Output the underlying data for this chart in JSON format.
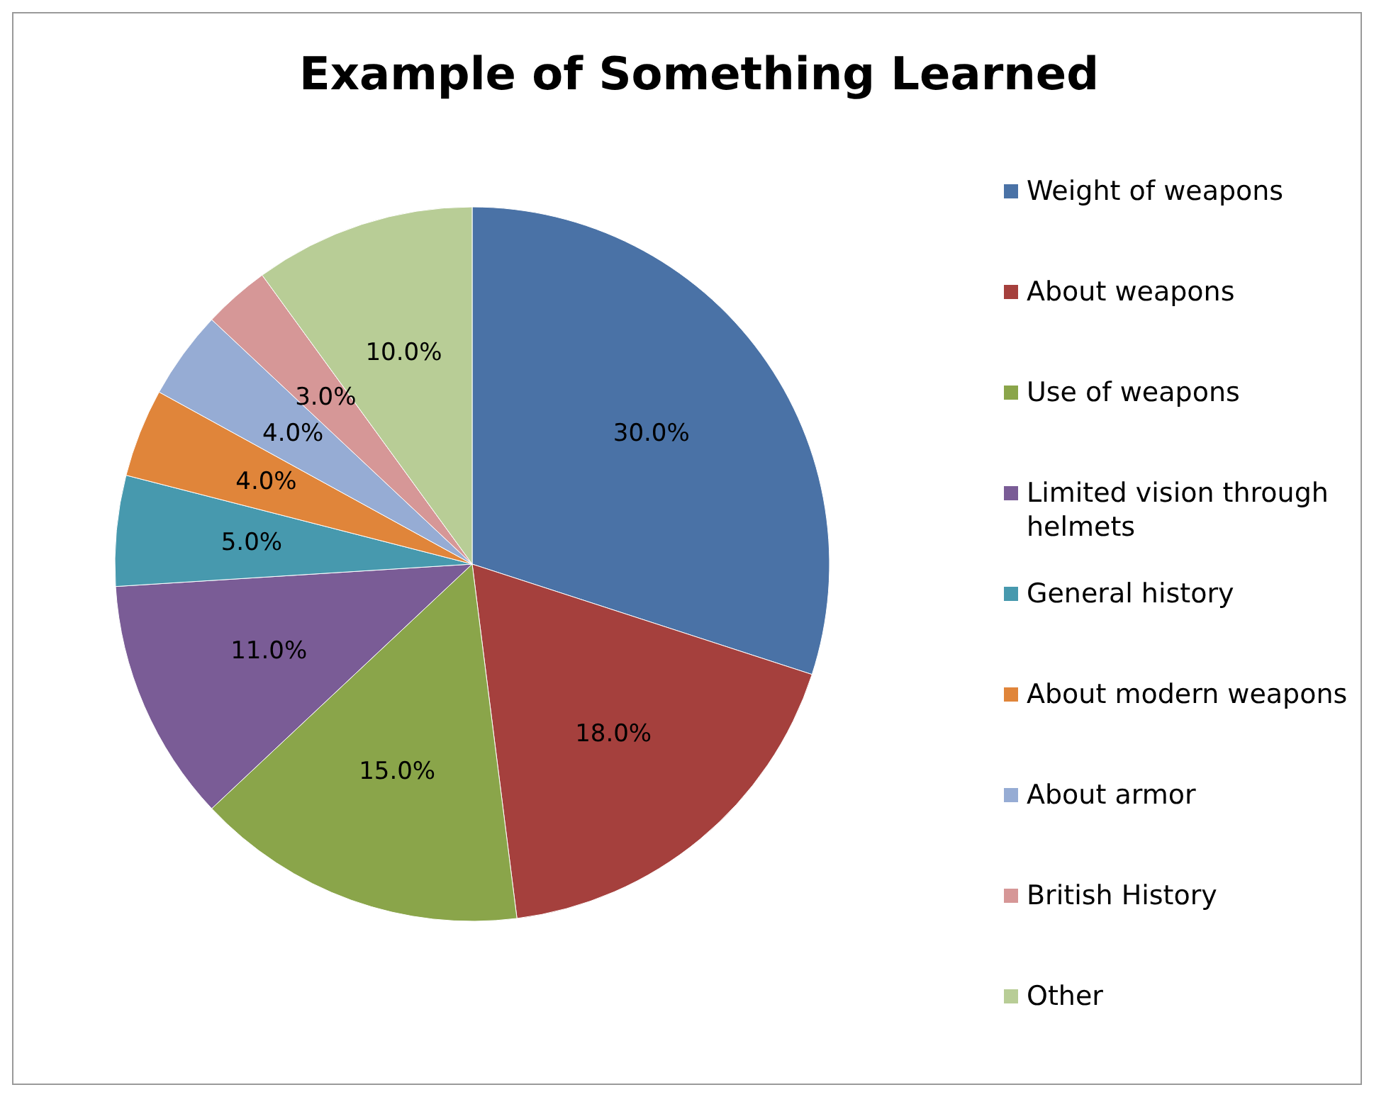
{
  "chart_data": {
    "type": "pie",
    "title": "Example of Something Learned",
    "categories": [
      "Weight of weapons",
      "About weapons",
      "Use of weapons",
      "Limited vision through helmets",
      "General history",
      "About modern weapons",
      "About armor",
      "British History",
      "Other"
    ],
    "values": [
      30,
      18,
      15,
      11,
      5,
      4,
      4,
      3,
      10
    ],
    "value_labels": [
      "30.0%",
      "18.0%",
      "15.0%",
      "11.0%",
      "5.0%",
      "4.0%",
      "4.0%",
      "3.0%",
      "10.0%"
    ],
    "colors": [
      "#4a72a6",
      "#a5403d",
      "#8aa54a",
      "#7a5c96",
      "#4799ae",
      "#e0853a",
      "#96acd4",
      "#d69797",
      "#b8cd96"
    ],
    "legend": "right"
  }
}
